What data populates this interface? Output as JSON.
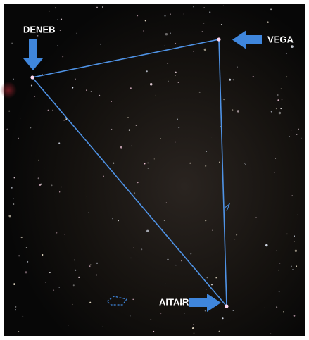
{
  "stars": [
    {
      "label": "DENEB"
    },
    {
      "label": "VEGA"
    },
    {
      "label": "AITAIR"
    }
  ]
}
